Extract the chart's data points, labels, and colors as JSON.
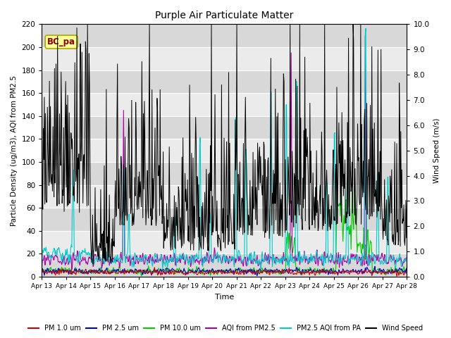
{
  "title": "Purple Air Particulate Matter",
  "xlabel": "Time",
  "ylabel_left": "Particle Density (ug/m3), AQI from PM2.5",
  "ylabel_right": "Wind Speed (m/s)",
  "ylim_left": [
    0,
    220
  ],
  "ylim_right": [
    0,
    10.0
  ],
  "yticks_left": [
    0,
    20,
    40,
    60,
    80,
    100,
    120,
    140,
    160,
    180,
    200,
    220
  ],
  "yticks_right": [
    0.0,
    1.0,
    2.0,
    3.0,
    4.0,
    5.0,
    6.0,
    7.0,
    8.0,
    9.0,
    10.0
  ],
  "xtick_labels": [
    "Apr 13",
    "Apr 14",
    "Apr 15",
    "Apr 16",
    "Apr 17",
    "Apr 18",
    "Apr 19",
    "Apr 20",
    "Apr 21",
    "Apr 22",
    "Apr 23",
    "Apr 24",
    "Apr 25",
    "Apr 26",
    "Apr 27",
    "Apr 28"
  ],
  "annotation_text": "BC_pa",
  "annotation_color": "#8B0000",
  "annotation_bg": "#FFFF99",
  "annotation_border": "#AAAA00",
  "series_colors": {
    "pm1": "#CC0000",
    "pm25": "#0000CC",
    "pm10": "#00CC00",
    "aqi_pm25": "#AA00AA",
    "pm25_aqi_pa": "#00CCCC",
    "wind": "#000000"
  },
  "legend_labels": [
    "PM 1.0 um",
    "PM 2.5 um",
    "PM 10.0 um",
    "AQI from PM2.5",
    "PM2.5 AQI from PA",
    "Wind Speed"
  ],
  "plot_bg": "#EBEBEB",
  "fig_bg": "#FFFFFF",
  "grid_color": "#FFFFFF"
}
